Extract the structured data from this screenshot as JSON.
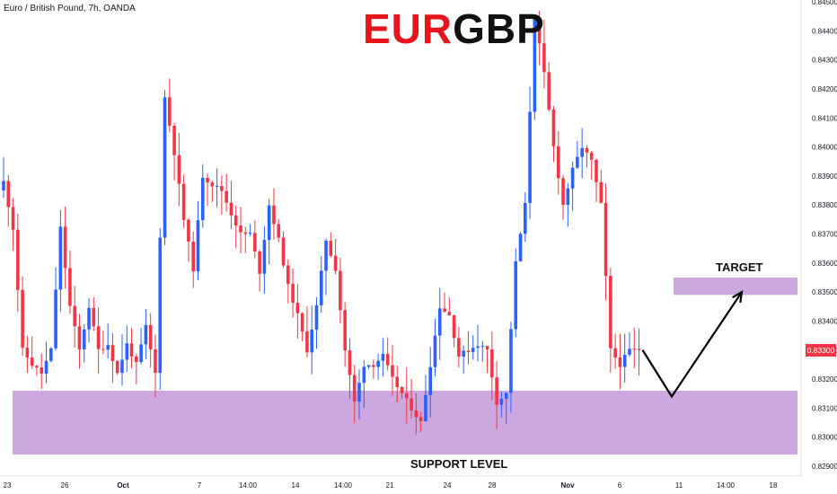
{
  "subtitle": "Euro / British Pound, 7h, OANDA",
  "title": {
    "part1": "EUR",
    "part2": "GBP",
    "part1_color": "#e8141c",
    "part2_color": "#111111"
  },
  "colors": {
    "up": "#2962ff",
    "down": "#f23645",
    "zone": "#c9a0dc",
    "arrow": "#000000"
  },
  "zones": {
    "support": {
      "label": "SUPPORT LEVEL",
      "low": 0.8294,
      "high": 0.8316
    },
    "target": {
      "label": "TARGET",
      "low": 0.8349,
      "high": 0.8355
    }
  },
  "last_price": "0.83300",
  "chart_data": {
    "type": "candlestick",
    "symbol": "EURGBP",
    "timeframe": "7h",
    "source": "OANDA",
    "ylim": [
      0.8288,
      0.8452
    ],
    "y_ticks": [
      "0.84500",
      "0.84400",
      "0.84300",
      "0.84200",
      "0.84100",
      "0.84000",
      "0.83900",
      "0.83800",
      "0.83700",
      "0.83600",
      "0.83500",
      "0.83400",
      "0.83300",
      "0.83200",
      "0.83100",
      "0.83000",
      "0.82900"
    ],
    "x_ticks": [
      "23",
      "26",
      "Oct",
      "7",
      "14:00",
      "14",
      "14:00",
      "21",
      "24",
      "28",
      "Nov",
      "6",
      "11",
      "14:00",
      "18"
    ],
    "anchors": [
      [
        0.8385,
        0.8388
      ],
      [
        0.8387,
        0.8372
      ],
      [
        0.8345,
        0.833
      ],
      [
        0.8332,
        0.8325
      ],
      [
        0.8325,
        0.8322
      ],
      [
        0.8328,
        0.833
      ],
      [
        0.8368,
        0.8372
      ],
      [
        0.8348,
        0.8345
      ],
      [
        0.8322,
        0.833
      ],
      [
        0.8338,
        0.8345
      ],
      [
        0.8345,
        0.833
      ],
      [
        0.8338,
        0.8332
      ],
      [
        0.8325,
        0.8322
      ],
      [
        0.8322,
        0.8332
      ],
      [
        0.832,
        0.8325
      ],
      [
        0.833,
        0.8338
      ],
      [
        0.8325,
        0.8322
      ],
      [
        0.833,
        0.8417
      ],
      [
        0.8402,
        0.8398
      ],
      [
        0.8385,
        0.8375
      ],
      [
        0.8375,
        0.8358
      ],
      [
        0.839,
        0.839
      ],
      [
        0.8387,
        0.8387
      ],
      [
        0.838,
        0.8385
      ],
      [
        0.8375,
        0.8377
      ],
      [
        0.837,
        0.837
      ],
      [
        0.8375,
        0.837
      ],
      [
        0.8355,
        0.8357
      ],
      [
        0.838,
        0.838
      ],
      [
        0.8372,
        0.8368
      ],
      [
        0.8355,
        0.8352
      ],
      [
        0.8345,
        0.8342
      ],
      [
        0.8332,
        0.833
      ],
      [
        0.833,
        0.8345
      ],
      [
        0.836,
        0.8368
      ],
      [
        0.8362,
        0.8358
      ],
      [
        0.8338,
        0.833
      ],
      [
        0.8318,
        0.8312
      ],
      [
        0.8316,
        0.8325
      ],
      [
        0.8322,
        0.8325
      ],
      [
        0.8325,
        0.8328
      ],
      [
        0.8322,
        0.832
      ],
      [
        0.831,
        0.8315
      ],
      [
        0.8305,
        0.831
      ],
      [
        0.8302,
        0.8305
      ],
      [
        0.8318,
        0.8325
      ],
      [
        0.834,
        0.8345
      ],
      [
        0.8345,
        0.8342
      ],
      [
        0.833,
        0.8328
      ],
      [
        0.8325,
        0.833
      ],
      [
        0.8335,
        0.8332
      ],
      [
        0.8325,
        0.833
      ],
      [
        0.8315,
        0.8312
      ],
      [
        0.8312,
        0.8315
      ],
      [
        0.8345,
        0.836
      ],
      [
        0.8372,
        0.838
      ],
      [
        0.8375,
        0.8445
      ],
      [
        0.844,
        0.8425
      ],
      [
        0.841,
        0.84
      ],
      [
        0.8385,
        0.838
      ],
      [
        0.8385,
        0.8392
      ],
      [
        0.841,
        0.84
      ],
      [
        0.8398,
        0.8395
      ],
      [
        0.839,
        0.838
      ],
      [
        0.836,
        0.833
      ],
      [
        0.833,
        0.8325
      ],
      [
        0.833,
        0.833
      ],
      [
        0.833,
        0.833
      ]
    ],
    "candle_count": 135,
    "projection": [
      [
        "last",
        0.833
      ],
      [
        "next",
        0.8314
      ],
      [
        "target",
        0.835
      ]
    ],
    "grid": false,
    "legend": "none"
  }
}
